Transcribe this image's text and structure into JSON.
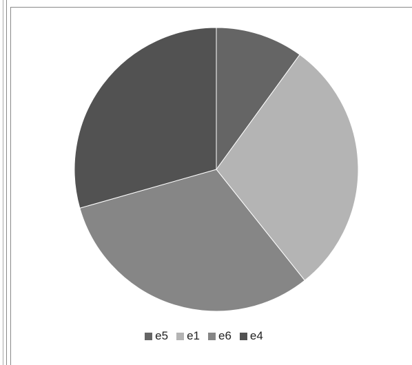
{
  "chart_data": {
    "type": "pie",
    "title": "",
    "slices": [
      {
        "label": "e5",
        "value": 10.0,
        "color": "#656565"
      },
      {
        "label": "e1",
        "value": 29.3,
        "color": "#b4b4b4"
      },
      {
        "label": "e6",
        "value": 31.3,
        "color": "#868686"
      },
      {
        "label": "e4",
        "value": 29.4,
        "color": "#525252"
      }
    ],
    "start_angle_deg": 0,
    "direction": "clockwise",
    "legend_position": "bottom"
  }
}
